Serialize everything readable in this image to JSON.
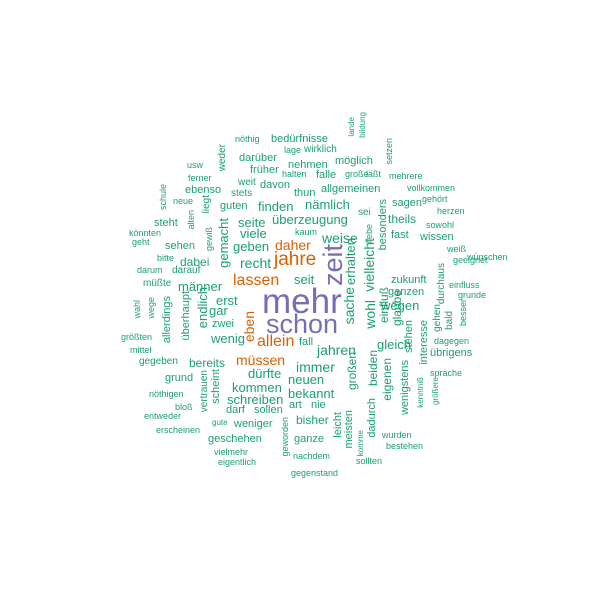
{
  "colors": {
    "purple": "#7570b3",
    "orange": "#d95f02",
    "teal": "#1b9e77"
  },
  "words": [
    {
      "text": "mehr",
      "color": "purple"
    },
    {
      "text": "schon",
      "color": "purple"
    },
    {
      "text": "zeit",
      "color": "purple"
    },
    {
      "text": "jahre",
      "color": "orange"
    },
    {
      "text": "lassen",
      "color": "orange"
    },
    {
      "text": "allein",
      "color": "orange"
    },
    {
      "text": "daher",
      "color": "orange"
    },
    {
      "text": "müssen",
      "color": "orange"
    },
    {
      "text": "eben",
      "color": "orange"
    },
    {
      "text": "weise",
      "color": "teal"
    },
    {
      "text": "jahren",
      "color": "teal"
    },
    {
      "text": "sache",
      "color": "teal"
    },
    {
      "text": "wohl",
      "color": "teal"
    },
    {
      "text": "recht",
      "color": "teal"
    },
    {
      "text": "immer",
      "color": "teal"
    },
    {
      "text": "vielleicht",
      "color": "teal"
    },
    {
      "text": "erhalten",
      "color": "teal"
    },
    {
      "text": "seit",
      "color": "teal"
    },
    {
      "text": "wenig",
      "color": "teal"
    },
    {
      "text": "geben",
      "color": "teal"
    },
    {
      "text": "viele",
      "color": "teal"
    },
    {
      "text": "seite",
      "color": "teal"
    },
    {
      "text": "finden",
      "color": "teal"
    },
    {
      "text": "nämlich",
      "color": "teal"
    },
    {
      "text": "überzeugung",
      "color": "teal"
    },
    {
      "text": "wegen",
      "color": "teal"
    },
    {
      "text": "gleich",
      "color": "teal"
    },
    {
      "text": "dürfte",
      "color": "teal"
    },
    {
      "text": "kommen",
      "color": "teal"
    },
    {
      "text": "schreiben",
      "color": "teal"
    },
    {
      "text": "neuen",
      "color": "teal"
    },
    {
      "text": "bekannt",
      "color": "teal"
    },
    {
      "text": "erst",
      "color": "teal"
    },
    {
      "text": "zwei",
      "color": "teal"
    },
    {
      "text": "gar",
      "color": "teal"
    },
    {
      "text": "männer",
      "color": "teal"
    },
    {
      "text": "dabei",
      "color": "teal"
    },
    {
      "text": "sehen",
      "color": "teal"
    },
    {
      "text": "steht",
      "color": "teal"
    },
    {
      "text": "gemacht",
      "color": "teal"
    },
    {
      "text": "endlich",
      "color": "teal"
    },
    {
      "text": "überhaupt",
      "color": "teal"
    },
    {
      "text": "bereits",
      "color": "teal"
    },
    {
      "text": "fall",
      "color": "teal"
    },
    {
      "text": "großen",
      "color": "teal"
    },
    {
      "text": "beiden",
      "color": "teal"
    },
    {
      "text": "eigenen",
      "color": "teal"
    },
    {
      "text": "einfluß",
      "color": "teal"
    },
    {
      "text": "glaube",
      "color": "teal"
    },
    {
      "text": "zukunft",
      "color": "teal"
    },
    {
      "text": "ganzen",
      "color": "teal"
    },
    {
      "text": "fast",
      "color": "teal"
    },
    {
      "text": "wissen",
      "color": "teal"
    },
    {
      "text": "theils",
      "color": "teal"
    },
    {
      "text": "sagen",
      "color": "teal"
    },
    {
      "text": "besonders",
      "color": "teal"
    },
    {
      "text": "sei",
      "color": "teal"
    },
    {
      "text": "allgemeinen",
      "color": "teal"
    },
    {
      "text": "falle",
      "color": "teal"
    },
    {
      "text": "nehmen",
      "color": "teal"
    },
    {
      "text": "thun",
      "color": "teal"
    },
    {
      "text": "davon",
      "color": "teal"
    },
    {
      "text": "guten",
      "color": "teal"
    },
    {
      "text": "ebenso",
      "color": "teal"
    },
    {
      "text": "interesse",
      "color": "teal"
    },
    {
      "text": "stehen",
      "color": "teal"
    },
    {
      "text": "wenigstens",
      "color": "teal"
    },
    {
      "text": "dadurch",
      "color": "teal"
    },
    {
      "text": "meisten",
      "color": "teal"
    },
    {
      "text": "leicht",
      "color": "teal"
    },
    {
      "text": "ganze",
      "color": "teal"
    },
    {
      "text": "bisher",
      "color": "teal"
    },
    {
      "text": "art",
      "color": "teal"
    },
    {
      "text": "nie",
      "color": "teal"
    },
    {
      "text": "sollen",
      "color": "teal"
    },
    {
      "text": "darf",
      "color": "teal"
    },
    {
      "text": "weniger",
      "color": "teal"
    },
    {
      "text": "geschehen",
      "color": "teal"
    },
    {
      "text": "grund",
      "color": "teal"
    },
    {
      "text": "gegeben",
      "color": "teal"
    },
    {
      "text": "allerdings",
      "color": "teal"
    },
    {
      "text": "scheint",
      "color": "teal"
    },
    {
      "text": "vertrauen",
      "color": "teal"
    },
    {
      "text": "darauf",
      "color": "teal"
    },
    {
      "text": "bitte",
      "color": "teal"
    },
    {
      "text": "müßte",
      "color": "teal"
    },
    {
      "text": "darum",
      "color": "teal"
    },
    {
      "text": "durchaus",
      "color": "teal"
    },
    {
      "text": "gehen",
      "color": "teal"
    },
    {
      "text": "bald",
      "color": "teal"
    },
    {
      "text": "besser",
      "color": "teal"
    },
    {
      "text": "übrigens",
      "color": "teal"
    },
    {
      "text": "dagegen",
      "color": "teal"
    },
    {
      "text": "grunde",
      "color": "teal"
    },
    {
      "text": "einfluss",
      "color": "teal"
    },
    {
      "text": "geeignet",
      "color": "teal"
    },
    {
      "text": "weiß",
      "color": "teal"
    },
    {
      "text": "sowohl",
      "color": "teal"
    },
    {
      "text": "herzen",
      "color": "teal"
    },
    {
      "text": "gehört",
      "color": "teal"
    },
    {
      "text": "vollkommen",
      "color": "teal"
    },
    {
      "text": "mehrere",
      "color": "teal"
    },
    {
      "text": "läßt",
      "color": "teal"
    },
    {
      "text": "setzen",
      "color": "teal"
    },
    {
      "text": "große",
      "color": "teal"
    },
    {
      "text": "möglich",
      "color": "teal"
    },
    {
      "text": "wirklich",
      "color": "teal"
    },
    {
      "text": "lage",
      "color": "teal"
    },
    {
      "text": "bedürfnisse",
      "color": "teal"
    },
    {
      "text": "nöthig",
      "color": "teal"
    },
    {
      "text": "lande",
      "color": "teal"
    },
    {
      "text": "bildung",
      "color": "teal"
    },
    {
      "text": "darüber",
      "color": "teal"
    },
    {
      "text": "früher",
      "color": "teal"
    },
    {
      "text": "halten",
      "color": "teal"
    },
    {
      "text": "weit",
      "color": "teal"
    },
    {
      "text": "stets",
      "color": "teal"
    },
    {
      "text": "usw",
      "color": "teal"
    },
    {
      "text": "weder",
      "color": "teal"
    },
    {
      "text": "ferner",
      "color": "teal"
    },
    {
      "text": "neue",
      "color": "teal"
    },
    {
      "text": "schule",
      "color": "teal"
    },
    {
      "text": "liegt",
      "color": "teal"
    },
    {
      "text": "alten",
      "color": "teal"
    },
    {
      "text": "gewiß",
      "color": "teal"
    },
    {
      "text": "könnten",
      "color": "teal"
    },
    {
      "text": "geht",
      "color": "teal"
    },
    {
      "text": "kaum",
      "color": "teal"
    },
    {
      "text": "liebe",
      "color": "teal"
    },
    {
      "text": "wahl",
      "color": "teal"
    },
    {
      "text": "wege",
      "color": "teal"
    },
    {
      "text": "größten",
      "color": "teal"
    },
    {
      "text": "mittel",
      "color": "teal"
    },
    {
      "text": "nöthigen",
      "color": "teal"
    },
    {
      "text": "bloß",
      "color": "teal"
    },
    {
      "text": "entweder",
      "color": "teal"
    },
    {
      "text": "erscheinen",
      "color": "teal"
    },
    {
      "text": "gute",
      "color": "teal"
    },
    {
      "text": "vielmehr",
      "color": "teal"
    },
    {
      "text": "eigentlich",
      "color": "teal"
    },
    {
      "text": "geworden",
      "color": "teal"
    },
    {
      "text": "nachdem",
      "color": "teal"
    },
    {
      "text": "gegenstand",
      "color": "teal"
    },
    {
      "text": "komme",
      "color": "teal"
    },
    {
      "text": "sollten",
      "color": "teal"
    },
    {
      "text": "bestehen",
      "color": "teal"
    },
    {
      "text": "wurden",
      "color": "teal"
    },
    {
      "text": "größere",
      "color": "teal"
    },
    {
      "text": "kenntniß",
      "color": "teal"
    },
    {
      "text": "sprache",
      "color": "teal"
    },
    {
      "text": "wünschen",
      "color": "teal"
    }
  ]
}
